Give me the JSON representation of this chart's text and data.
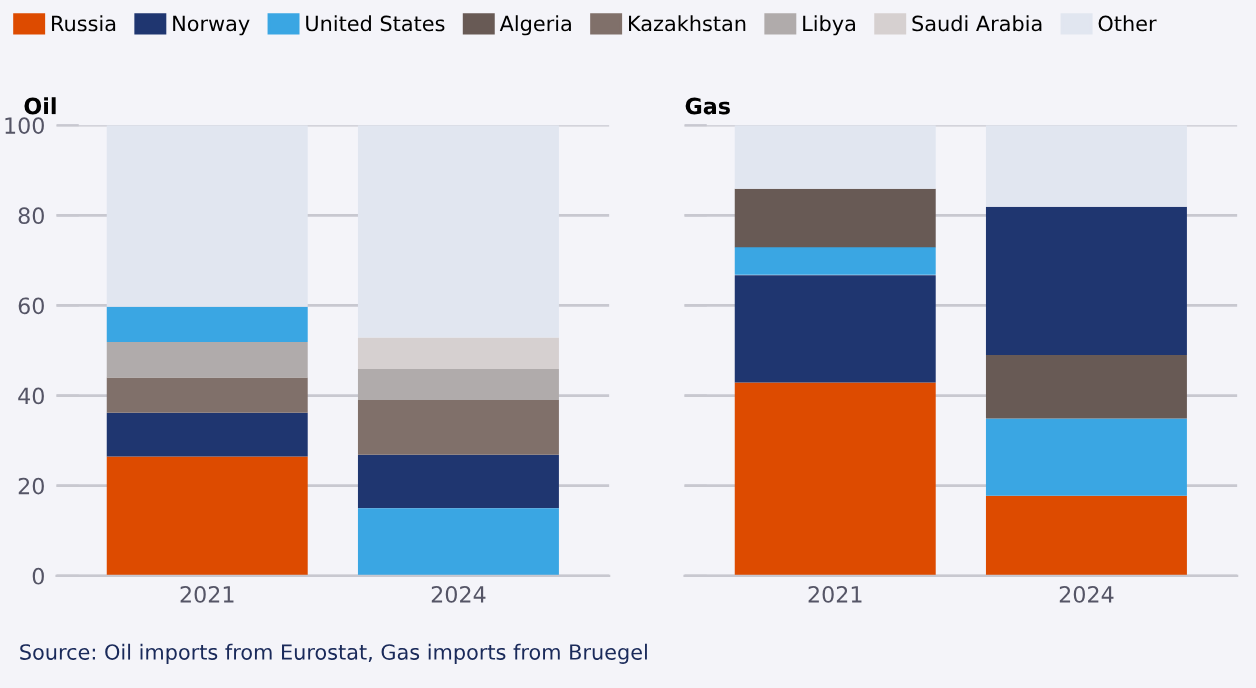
{
  "chart_data": [
    {
      "type": "bar",
      "title": "Oil",
      "categories": [
        "2021",
        "2024"
      ],
      "ylim": [
        0,
        100
      ],
      "yticks": [
        0,
        20,
        40,
        60,
        80,
        100
      ],
      "grid": "y",
      "legend": "top",
      "annotations": [
        "Source: Oil imports from Eurostat, Gas imports from Bruegel"
      ],
      "series": [
        {
          "name": "Russia",
          "color": "#dd4b00",
          "values": [
            26.5,
            null
          ],
          "base": [
            0,
            null
          ]
        },
        {
          "name": "Norway",
          "color": "#1f3670",
          "values": [
            9.7,
            11.9
          ],
          "base": [
            26.5,
            15.0
          ]
        },
        {
          "name": "United States",
          "color": "#3aa6e3",
          "values": [
            7.8,
            15.0
          ],
          "base": [
            51.9,
            0
          ]
        },
        {
          "name": "Algeria",
          "color": "#685a55",
          "values": [
            null,
            null
          ],
          "base": [
            null,
            null
          ]
        },
        {
          "name": "Kazakhstan",
          "color": "#80706a",
          "values": [
            7.8,
            12.1
          ],
          "base": [
            36.2,
            26.9
          ]
        },
        {
          "name": "Libya",
          "color": "#b0abab",
          "values": [
            7.9,
            6.9
          ],
          "base": [
            44.0,
            39.0
          ]
        },
        {
          "name": "Saudi Arabia",
          "color": "#d6d0d0",
          "values": [
            null,
            7.0
          ],
          "base": [
            null,
            45.9
          ]
        },
        {
          "name": "Other",
          "color": "#e1e6f0",
          "values": [
            40.3,
            47.1
          ],
          "base": [
            59.7,
            52.9
          ]
        }
      ]
    },
    {
      "type": "bar",
      "title": "Gas",
      "categories": [
        "2021",
        "2024"
      ],
      "ylim": [
        0,
        100
      ],
      "yticks": [
        0,
        20,
        40,
        60,
        80,
        100
      ],
      "grid": "y",
      "tick_labels": "x",
      "series": [
        {
          "color": "#dd4b00",
          "values": [
            42.9,
            17.8
          ],
          "base": [
            0,
            0
          ]
        },
        {
          "color": "#1f3670",
          "values": [
            23.8,
            32.9
          ],
          "base": [
            42.9,
            49.0
          ]
        },
        {
          "color": "#3aa6e3",
          "values": [
            6.2,
            17.1
          ],
          "base": [
            66.8,
            17.8
          ]
        },
        {
          "color": "#685a55",
          "values": [
            13.0,
            14.1
          ],
          "base": [
            72.9,
            34.9
          ]
        },
        {
          "color": "#e1e6f0",
          "values": [
            14.1,
            18.1
          ],
          "base": [
            85.9,
            81.9
          ]
        }
      ]
    }
  ]
}
